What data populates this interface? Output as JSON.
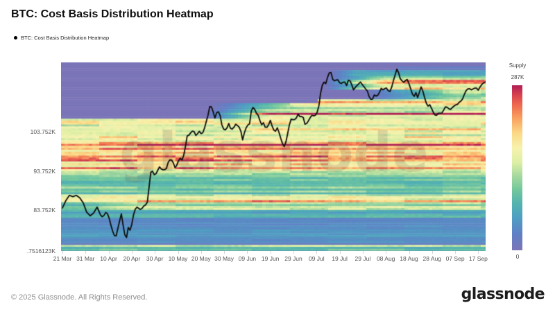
{
  "title": "BTC: Cost Basis Distribution Heatmap",
  "legend": {
    "label": "BTC: Cost Basis Distribution Heatmap",
    "dot_color": "#000000"
  },
  "watermark": "glassnode",
  "footer": {
    "copyright": "© 2025 Glassnode. All Rights Reserved.",
    "brand": "glassnode"
  },
  "colorbar": {
    "title": "Supply",
    "max_label": "287K",
    "min_label": "0"
  },
  "y_axis": {
    "labels": [
      {
        "text": "103.752K",
        "price": 103.752
      },
      {
        "text": "93.752K",
        "price": 93.752
      },
      {
        "text": "83.752K",
        "price": 83.752
      },
      {
        "text": ".7516123K",
        "price": 73.35
      }
    ]
  },
  "x_axis": {
    "labels": [
      "21 Mar",
      "31 Mar",
      "10 Apr",
      "20 Apr",
      "30 Apr",
      "10 May",
      "20 May",
      "30 May",
      "09 Jun",
      "19 Jun",
      "29 Jun",
      "09 Jul",
      "19 Jul",
      "29 Jul",
      "08 Aug",
      "18 Aug",
      "28 Aug",
      "07 Sep",
      "17 Sep"
    ],
    "tick_interval_days": 10
  },
  "chart_data": {
    "type": "heatmap",
    "title": "BTC: Cost Basis Distribution Heatmap",
    "x_range_days": [
      0,
      183
    ],
    "price_range_k": [
      73.3,
      121.55
    ],
    "supply_range": [
      0,
      287
    ],
    "initial_ath_k": 107.3,
    "price_line_color": "#0c0c0c",
    "zero_supply_color": "#7b74b8",
    "colormap_stops": [
      [
        0.0,
        "#7b74b8"
      ],
      [
        0.1,
        "#6080c5"
      ],
      [
        0.2,
        "#4f9fc2"
      ],
      [
        0.28,
        "#53b2b0"
      ],
      [
        0.37,
        "#74c89c"
      ],
      [
        0.45,
        "#a6d8a0"
      ],
      [
        0.53,
        "#dcefa4"
      ],
      [
        0.62,
        "#f7f2ae"
      ],
      [
        0.71,
        "#fbd986"
      ],
      [
        0.8,
        "#f9a160"
      ],
      [
        0.88,
        "#ee6a4e"
      ],
      [
        0.94,
        "#d8434f"
      ],
      [
        1.0,
        "#b01e55"
      ]
    ],
    "price_line": [
      [
        0,
        84.3
      ],
      [
        1.5,
        86.2
      ],
      [
        3,
        87.5
      ],
      [
        4.5,
        87.2
      ],
      [
        6,
        87.5
      ],
      [
        7.5,
        86.9
      ],
      [
        9,
        85.6
      ],
      [
        10.5,
        83.2
      ],
      [
        12,
        82.3
      ],
      [
        13.5,
        83.0
      ],
      [
        15,
        84.5
      ],
      [
        16.5,
        82.5
      ],
      [
        17.5,
        81.9
      ],
      [
        19,
        83.4
      ],
      [
        20,
        82.2
      ],
      [
        21.5,
        78.7
      ],
      [
        23,
        76.5
      ],
      [
        24,
        79.1
      ],
      [
        25.5,
        82.8
      ],
      [
        26.5,
        79.0
      ],
      [
        27.5,
        75.9
      ],
      [
        28.5,
        79.3
      ],
      [
        29.5,
        78.4
      ],
      [
        31,
        83.3
      ],
      [
        32,
        84.6
      ],
      [
        33,
        84.2
      ],
      [
        34,
        83.8
      ],
      [
        35,
        84.7
      ],
      [
        36,
        85.1
      ],
      [
        37,
        86.0
      ],
      [
        38,
        93.3
      ],
      [
        39,
        93.7
      ],
      [
        40,
        92.5
      ],
      [
        41,
        93.6
      ],
      [
        42,
        94.8
      ],
      [
        43,
        94.1
      ],
      [
        44,
        94.0
      ],
      [
        45,
        94.4
      ],
      [
        46,
        96.4
      ],
      [
        47,
        96.8
      ],
      [
        48,
        95.8
      ],
      [
        49,
        94.2
      ],
      [
        50,
        96.2
      ],
      [
        51,
        97.0
      ],
      [
        52,
        96.4
      ],
      [
        53,
        99.1
      ],
      [
        54,
        102.7
      ],
      [
        55,
        103.0
      ],
      [
        56,
        104.0
      ],
      [
        57,
        103.8
      ],
      [
        58,
        102.5
      ],
      [
        59,
        104.1
      ],
      [
        60,
        103.3
      ],
      [
        61,
        103.6
      ],
      [
        62,
        105.8
      ],
      [
        63,
        108.0
      ],
      [
        64,
        110.9
      ],
      [
        65,
        109.4
      ],
      [
        66,
        107.3
      ],
      [
        67,
        109.1
      ],
      [
        68,
        108.7
      ],
      [
        69,
        105.6
      ],
      [
        70,
        104.1
      ],
      [
        71,
        104.4
      ],
      [
        72,
        105.9
      ],
      [
        73,
        104.2
      ],
      [
        74,
        104.7
      ],
      [
        75,
        105.7
      ],
      [
        76,
        105.3
      ],
      [
        77,
        104.6
      ],
      [
        78,
        101.7
      ],
      [
        79,
        104.1
      ],
      [
        80,
        105.4
      ],
      [
        81,
        105.8
      ],
      [
        82,
        110.2
      ],
      [
        83,
        109.8
      ],
      [
        84,
        108.5
      ],
      [
        85,
        107.8
      ],
      [
        86,
        105.4
      ],
      [
        87,
        106.1
      ],
      [
        88,
        104.6
      ],
      [
        89,
        105.2
      ],
      [
        90,
        106.7
      ],
      [
        91,
        104.8
      ],
      [
        92,
        103.6
      ],
      [
        93,
        104.8
      ],
      [
        94,
        103.2
      ],
      [
        95,
        101.0
      ],
      [
        96,
        100.0
      ],
      [
        97,
        101.6
      ],
      [
        98,
        105.1
      ],
      [
        99,
        107.0
      ],
      [
        100,
        106.8
      ],
      [
        101,
        107.0
      ],
      [
        102,
        108.3
      ],
      [
        103,
        107.4
      ],
      [
        104,
        108.0
      ],
      [
        105,
        105.7
      ],
      [
        106,
        106.0
      ],
      [
        107,
        107.2
      ],
      [
        108,
        108.0
      ],
      [
        109,
        107.8
      ],
      [
        110,
        108.2
      ],
      [
        111,
        110.4
      ],
      [
        112,
        114.8
      ],
      [
        113,
        116.6
      ],
      [
        114,
        116.1
      ],
      [
        115,
        118.2
      ],
      [
        116,
        119.5
      ],
      [
        117,
        117.2
      ],
      [
        118,
        116.7
      ],
      [
        119,
        117.3
      ],
      [
        120,
        116.3
      ],
      [
        121,
        116.1
      ],
      [
        122,
        116.8
      ],
      [
        123,
        115.6
      ],
      [
        124,
        117.4
      ],
      [
        125,
        116.2
      ],
      [
        126,
        114.5
      ],
      [
        127,
        115.3
      ],
      [
        128,
        115.9
      ],
      [
        129,
        116.5
      ],
      [
        130,
        115.7
      ],
      [
        131,
        114.9
      ],
      [
        132,
        114.2
      ],
      [
        133,
        112.3
      ],
      [
        134,
        111.8
      ],
      [
        135,
        113.2
      ],
      [
        136,
        112.8
      ],
      [
        137,
        113.5
      ],
      [
        138,
        114.9
      ],
      [
        139,
        114.4
      ],
      [
        140,
        115.2
      ],
      [
        141,
        114.3
      ],
      [
        142,
        114.0
      ],
      [
        143,
        116.3
      ],
      [
        145,
        120.3
      ],
      [
        146,
        117.5
      ],
      [
        147,
        116.8
      ],
      [
        148,
        116.3
      ],
      [
        149,
        117.5
      ],
      [
        150,
        116.1
      ],
      [
        151,
        114.3
      ],
      [
        152,
        112.5
      ],
      [
        153,
        113.8
      ],
      [
        154,
        112.1
      ],
      [
        155,
        115.6
      ],
      [
        156,
        114.2
      ],
      [
        157,
        112.0
      ],
      [
        158,
        110.2
      ],
      [
        159,
        110.7
      ],
      [
        160,
        109.5
      ],
      [
        161,
        108.1
      ],
      [
        162,
        108.0
      ],
      [
        163,
        108.7
      ],
      [
        164,
        108.3
      ],
      [
        165,
        109.3
      ],
      [
        166,
        110.4
      ],
      [
        167,
        109.7
      ],
      [
        168,
        109.5
      ],
      [
        169,
        110.1
      ],
      [
        170,
        110.6
      ],
      [
        171,
        110.8
      ],
      [
        172,
        111.5
      ],
      [
        173,
        111.8
      ],
      [
        174,
        113.4
      ],
      [
        175,
        114.6
      ],
      [
        176,
        114.9
      ],
      [
        177,
        114.5
      ],
      [
        178,
        114.8
      ],
      [
        179,
        115.1
      ],
      [
        180,
        114.4
      ],
      [
        181,
        115.5
      ],
      [
        182,
        116.2
      ],
      [
        183,
        116.5
      ]
    ],
    "supply_bands": [
      [
        72.5,
        73.8,
        60,
        0,
        0
      ],
      [
        73.8,
        74.8,
        140,
        0,
        0
      ],
      [
        74.8,
        76.5,
        48,
        0,
        0
      ],
      [
        76.5,
        79.0,
        56,
        0,
        0
      ],
      [
        79.0,
        81.8,
        38,
        0,
        0
      ],
      [
        81.8,
        84.0,
        72,
        0,
        0
      ],
      [
        84.0,
        85.8,
        105,
        0,
        0
      ],
      [
        84.0,
        86.5,
        40,
        12,
        22
      ],
      [
        85.8,
        87.6,
        148,
        0,
        0
      ],
      [
        87.6,
        88.6,
        118,
        0,
        0
      ],
      [
        88.6,
        93.0,
        105,
        0,
        0
      ],
      [
        93.0,
        95.3,
        168,
        0,
        0
      ],
      [
        95.3,
        97.0,
        185,
        0,
        0
      ],
      [
        97.0,
        99.8,
        215,
        0,
        0
      ],
      [
        99.8,
        103.5,
        182,
        0,
        0
      ],
      [
        103.5,
        107.3,
        158,
        0,
        0
      ],
      [
        107.3,
        109.5,
        162,
        62,
        28
      ],
      [
        109.5,
        112.0,
        150,
        64,
        40
      ],
      [
        112.0,
        114.5,
        135,
        130,
        40
      ],
      [
        114.5,
        117.8,
        165,
        113,
        26
      ],
      [
        117.8,
        119.4,
        72,
        115,
        12
      ],
      [
        119.4,
        120.8,
        24,
        116,
        15
      ],
      [
        96.8,
        97.4,
        55,
        0,
        0
      ],
      [
        100.3,
        100.9,
        50,
        0,
        0
      ],
      [
        104.0,
        104.6,
        70,
        66,
        20
      ],
      [
        110.8,
        111.4,
        55,
        80,
        30
      ],
      [
        116.3,
        116.9,
        58,
        118,
        20
      ],
      [
        108.5,
        109.2,
        45,
        152,
        20
      ]
    ]
  }
}
